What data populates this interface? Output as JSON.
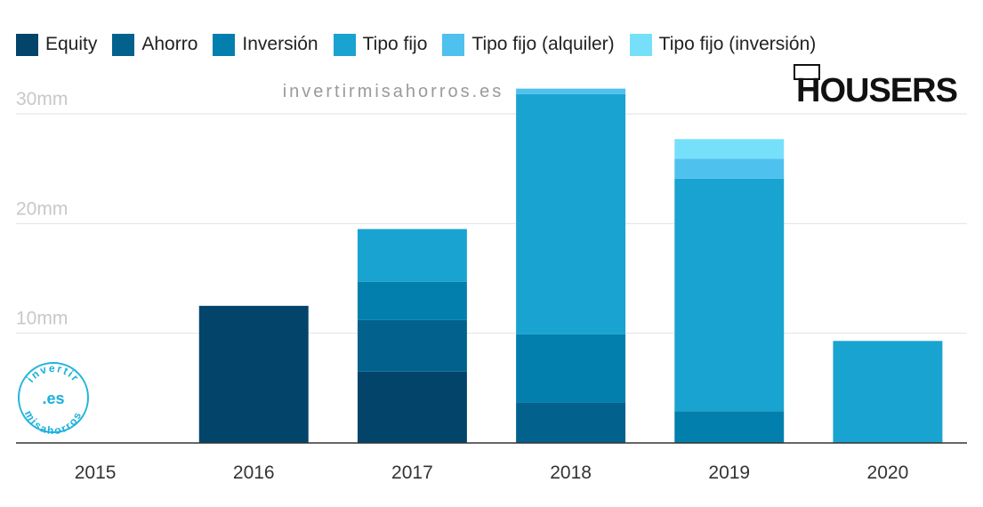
{
  "watermark": "invertirmisahorros.es",
  "brand_logo": "HOUSERS",
  "badge": {
    "top": "invertir",
    "middle": ".es",
    "bottom": "misahorros"
  },
  "chart_data": {
    "type": "bar",
    "stacked": true,
    "title": "",
    "xlabel": "",
    "ylabel": "",
    "categories": [
      "2015",
      "2016",
      "2017",
      "2018",
      "2019",
      "2020"
    ],
    "ylim": [
      0,
      30
    ],
    "yticks": [
      10,
      20,
      30
    ],
    "ytick_labels": [
      "10mm",
      "20mm",
      "30mm"
    ],
    "grid": true,
    "legend_position": "top-left",
    "series": [
      {
        "name": "Equity",
        "color": "#03446b",
        "values": [
          0,
          12.5,
          6.5,
          0,
          0,
          0
        ]
      },
      {
        "name": "Ahorro",
        "color": "#02628d",
        "values": [
          0,
          0,
          4.7,
          3.7,
          0,
          0
        ]
      },
      {
        "name": "Inversión",
        "color": "#027fac",
        "values": [
          0,
          0,
          3.5,
          6.2,
          2.9,
          0
        ]
      },
      {
        "name": "Tipo fijo",
        "color": "#19a3d0",
        "values": [
          0,
          0,
          4.8,
          21.9,
          21.2,
          9.3
        ]
      },
      {
        "name": "Tipo fijo (alquiler)",
        "color": "#4ec1ee",
        "values": [
          0,
          0,
          0,
          0.5,
          1.8,
          0
        ]
      },
      {
        "name": "Tipo fijo (inversión)",
        "color": "#76e0fb",
        "values": [
          0,
          0,
          0,
          0,
          1.8,
          0
        ]
      }
    ]
  }
}
